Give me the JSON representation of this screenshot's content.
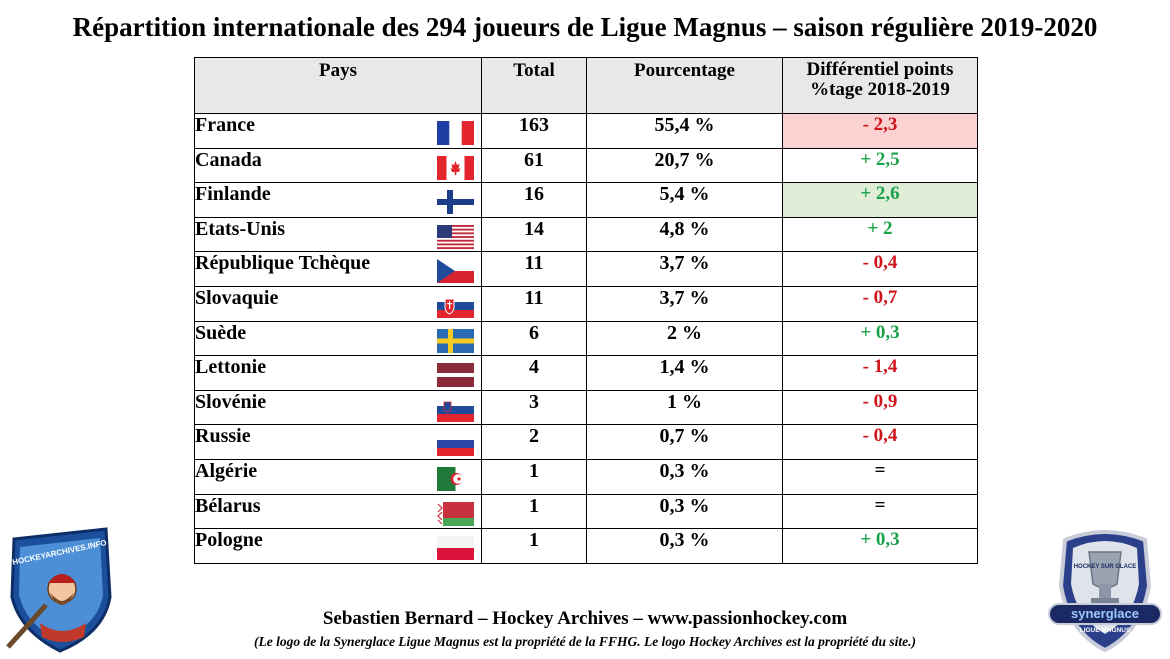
{
  "title": "Répartition internationale des 294 joueurs de Ligue Magnus – saison régulière 2019-2020",
  "chart_data": {
    "type": "table",
    "columns": [
      "Pays",
      "Total",
      "Pourcentage",
      "Différentiel points %tage 2018-2019"
    ],
    "header_diff_line1": "Différentiel points",
    "header_diff_line2": "%tage 2018-2019",
    "rows": [
      {
        "pays": "France",
        "flag": "france-flag",
        "total": 163,
        "pct": "55,4 %",
        "diff": "- 2,3",
        "trend": "neg",
        "highlight": "red"
      },
      {
        "pays": "Canada",
        "flag": "canada-flag",
        "total": 61,
        "pct": "20,7 %",
        "diff": "+ 2,5",
        "trend": "pos",
        "highlight": ""
      },
      {
        "pays": "Finlande",
        "flag": "finland-flag",
        "total": 16,
        "pct": "5,4 %",
        "diff": "+ 2,6",
        "trend": "pos",
        "highlight": "green"
      },
      {
        "pays": "Etats-Unis",
        "flag": "usa-flag",
        "total": 14,
        "pct": "4,8 %",
        "diff": "+ 2",
        "trend": "pos",
        "highlight": ""
      },
      {
        "pays": "République Tchèque",
        "flag": "czech-flag",
        "total": 11,
        "pct": "3,7 %",
        "diff": "- 0,4",
        "trend": "neg",
        "highlight": ""
      },
      {
        "pays": "Slovaquie",
        "flag": "slovakia-flag",
        "total": 11,
        "pct": "3,7 %",
        "diff": "- 0,7",
        "trend": "neg",
        "highlight": ""
      },
      {
        "pays": "Suède",
        "flag": "sweden-flag",
        "total": 6,
        "pct": "2 %",
        "diff": "+ 0,3",
        "trend": "pos",
        "highlight": ""
      },
      {
        "pays": "Lettonie",
        "flag": "latvia-flag",
        "total": 4,
        "pct": "1,4 %",
        "diff": "- 1,4",
        "trend": "neg",
        "highlight": ""
      },
      {
        "pays": "Slovénie",
        "flag": "slovenia-flag",
        "total": 3,
        "pct": "1 %",
        "diff": "- 0,9",
        "trend": "neg",
        "highlight": ""
      },
      {
        "pays": "Russie",
        "flag": "russia-flag",
        "total": 2,
        "pct": "0,7 %",
        "diff": "- 0,4",
        "trend": "neg",
        "highlight": ""
      },
      {
        "pays": "Algérie",
        "flag": "algeria-flag",
        "total": 1,
        "pct": "0,3 %",
        "diff": "=",
        "trend": "eq",
        "highlight": ""
      },
      {
        "pays": "Bélarus",
        "flag": "belarus-flag",
        "total": 1,
        "pct": "0,3 %",
        "diff": "=",
        "trend": "eq",
        "highlight": ""
      },
      {
        "pays": "Pologne",
        "flag": "poland-flag",
        "total": 1,
        "pct": "0,3 %",
        "diff": "+ 0,3",
        "trend": "pos",
        "highlight": ""
      }
    ]
  },
  "colors": {
    "negative": "#d0131a",
    "positive": "#1aa24a",
    "highlight_red": "#fbd1d1",
    "highlight_green": "#e0eed8",
    "header_bg": "#e8e8e8"
  },
  "footer": {
    "credit": "Sebastien Bernard – Hockey Archives – www.passionhockey.com",
    "note": "(Le logo de la Synerglace Ligue Magnus est la propriété de la FFHG. Le logo Hockey Archives est la propriété du site.)"
  },
  "logos": {
    "left": {
      "icon": "hockey-archives-logo",
      "text": "HOCKEYARCHIVES.INFO"
    },
    "right": {
      "icon": "synerglace-ligue-magnus-logo",
      "text_top": "HOCKEY SUR GLACE",
      "text_main": "synerglace",
      "text_sub": "LIGUE MAGNUS"
    }
  }
}
